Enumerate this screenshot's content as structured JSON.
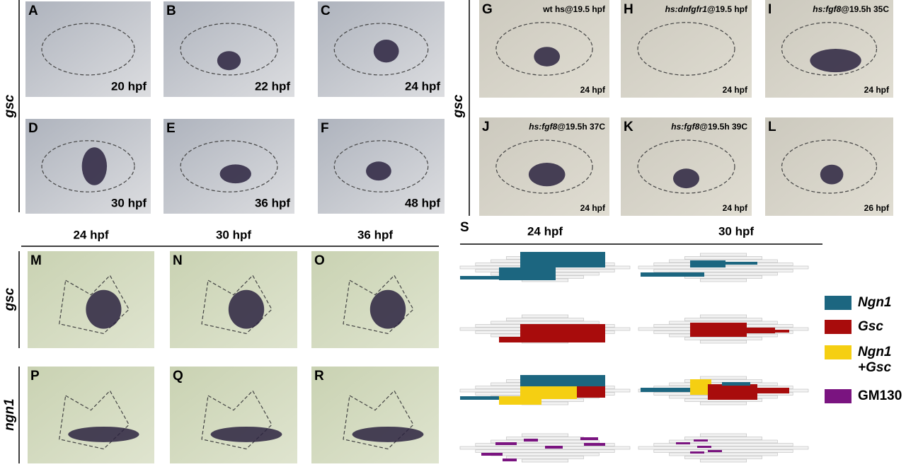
{
  "stage_panels": [
    {
      "letter": "A",
      "caption": "20 hpf"
    },
    {
      "letter": "B",
      "caption": "22 hpf"
    },
    {
      "letter": "C",
      "caption": "24 hpf"
    },
    {
      "letter": "D",
      "caption": "30 hpf"
    },
    {
      "letter": "E",
      "caption": "36 hpf"
    },
    {
      "letter": "F",
      "caption": "48 hpf"
    }
  ],
  "stage_row_label": "gsc",
  "treatment_panels": [
    {
      "letter": "G",
      "condition": {
        "plain": "wt hs@19.5 hpf"
      },
      "caption": "24 hpf"
    },
    {
      "letter": "H",
      "condition": {
        "italic": "hs:dnfgfr1",
        "plain": "@19.5 hpf"
      },
      "caption": "24 hpf"
    },
    {
      "letter": "I",
      "condition": {
        "italic": "hs:fgf8",
        "plain": "@19.5h 35C"
      },
      "caption": "24 hpf"
    },
    {
      "letter": "J",
      "condition": {
        "italic": "hs:fgf8",
        "plain": "@19.5h 37C"
      },
      "caption": "24 hpf"
    },
    {
      "letter": "K",
      "condition": {
        "italic": "hs:fgf8",
        "plain": "@19.5h 39C"
      },
      "caption": "24 hpf"
    },
    {
      "letter": "L",
      "caption": "26 hpf"
    }
  ],
  "treatment_row_label": "gsc",
  "section_columns": [
    "24 hpf",
    "30 hpf",
    "36 hpf"
  ],
  "section_rows": [
    {
      "label": "gsc",
      "letters": [
        "M",
        "N",
        "O"
      ]
    },
    {
      "label": "ngn1",
      "letters": [
        "P",
        "Q",
        "R"
      ]
    }
  ],
  "schematic": {
    "letter": "S",
    "columns": [
      "24 hpf",
      "30 hpf"
    ],
    "legend": [
      {
        "lines": [
          "Ngn1"
        ],
        "color": "#1c6680",
        "italic": true
      },
      {
        "lines": [
          "Gsc"
        ],
        "color": "#a80c0c",
        "italic": true
      },
      {
        "lines": [
          "Ngn1",
          "+Gsc"
        ],
        "color": "#f5cf12",
        "italic": true
      },
      {
        "lines": [
          "GM130"
        ],
        "color": "#7a1480",
        "italic": false
      }
    ]
  }
}
